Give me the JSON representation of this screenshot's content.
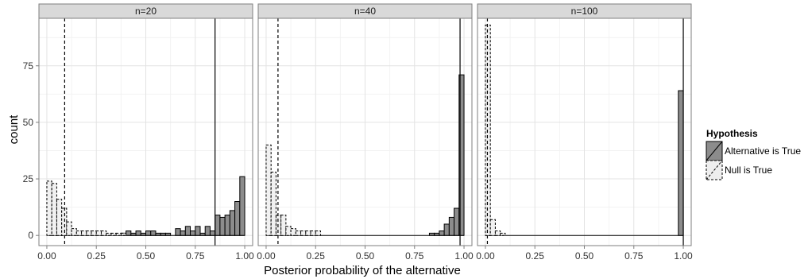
{
  "chart_data": {
    "type": "histogram",
    "xlabel": "Posterior probability of the alternative",
    "ylabel": "count",
    "xlim": [
      -0.04,
      1.04
    ],
    "ylim": [
      -4.5,
      96
    ],
    "x_ticks": [
      0.0,
      0.25,
      0.5,
      0.75,
      1.0
    ],
    "x_tick_labels": [
      "0.00",
      "0.25",
      "0.50",
      "0.75",
      "1.00"
    ],
    "y_ticks": [
      0,
      25,
      50,
      75
    ],
    "y_tick_labels": [
      "0",
      "25",
      "50",
      "75"
    ],
    "bin_width": 0.025,
    "grid": true,
    "legend": {
      "title": "Hypothesis",
      "position": "right",
      "entries": [
        {
          "label": "Alternative is True",
          "fill": "#8c8c8c",
          "linestyle": "solid"
        },
        {
          "label": "Null is True",
          "fill": "#eeeeee",
          "linestyle": "dashed"
        }
      ]
    },
    "panels": [
      {
        "label": "n=20",
        "mean_lines": [
          {
            "series": "Alternative is True",
            "x": 0.85
          },
          {
            "series": "Null is True",
            "x": 0.09
          }
        ],
        "series": [
          {
            "name": "Null is True",
            "bins": [
              [
                0.0,
                24
              ],
              [
                0.025,
                23
              ],
              [
                0.05,
                16
              ],
              [
                0.075,
                12
              ],
              [
                0.1,
                6
              ],
              [
                0.125,
                3
              ],
              [
                0.15,
                2
              ],
              [
                0.175,
                2
              ],
              [
                0.2,
                2
              ],
              [
                0.225,
                2
              ],
              [
                0.25,
                2
              ],
              [
                0.275,
                2
              ],
              [
                0.3,
                1
              ],
              [
                0.325,
                1
              ],
              [
                0.35,
                1
              ],
              [
                0.375,
                1
              ]
            ]
          },
          {
            "name": "Alternative is True",
            "bins": [
              [
                0.375,
                1
              ],
              [
                0.4,
                2
              ],
              [
                0.425,
                1
              ],
              [
                0.45,
                2
              ],
              [
                0.475,
                1
              ],
              [
                0.5,
                2
              ],
              [
                0.525,
                2
              ],
              [
                0.55,
                1
              ],
              [
                0.575,
                1
              ],
              [
                0.6,
                1
              ],
              [
                0.65,
                3
              ],
              [
                0.675,
                2
              ],
              [
                0.7,
                4
              ],
              [
                0.725,
                2
              ],
              [
                0.75,
                4
              ],
              [
                0.775,
                1
              ],
              [
                0.8,
                4
              ],
              [
                0.825,
                2
              ],
              [
                0.85,
                9
              ],
              [
                0.875,
                8
              ],
              [
                0.9,
                9
              ],
              [
                0.925,
                11
              ],
              [
                0.95,
                15
              ],
              [
                0.975,
                26
              ]
            ]
          }
        ]
      },
      {
        "label": "n=40",
        "mean_lines": [
          {
            "series": "Alternative is True",
            "x": 0.98
          },
          {
            "series": "Null is True",
            "x": 0.06
          }
        ],
        "series": [
          {
            "name": "Null is True",
            "bins": [
              [
                0.0,
                40
              ],
              [
                0.025,
                28
              ],
              [
                0.05,
                9
              ],
              [
                0.075,
                9
              ],
              [
                0.1,
                4
              ],
              [
                0.125,
                3
              ],
              [
                0.15,
                2
              ],
              [
                0.175,
                2
              ],
              [
                0.2,
                2
              ],
              [
                0.225,
                2
              ],
              [
                0.25,
                2
              ]
            ]
          },
          {
            "name": "Alternative is True",
            "bins": [
              [
                0.825,
                1
              ],
              [
                0.85,
                1
              ],
              [
                0.875,
                2
              ],
              [
                0.9,
                5
              ],
              [
                0.925,
                8
              ],
              [
                0.95,
                12
              ],
              [
                0.975,
                71
              ]
            ]
          }
        ]
      },
      {
        "label": "n=100",
        "mean_lines": [
          {
            "series": "Alternative is True",
            "x": 1.0
          },
          {
            "series": "Null is True",
            "x": 0.01
          }
        ],
        "series": [
          {
            "name": "Null is True",
            "bins": [
              [
                0.0,
                93
              ],
              [
                0.025,
                7
              ],
              [
                0.05,
                2
              ],
              [
                0.075,
                1
              ]
            ]
          },
          {
            "name": "Alternative is True",
            "bins": [
              [
                0.975,
                64
              ]
            ]
          }
        ]
      }
    ]
  }
}
